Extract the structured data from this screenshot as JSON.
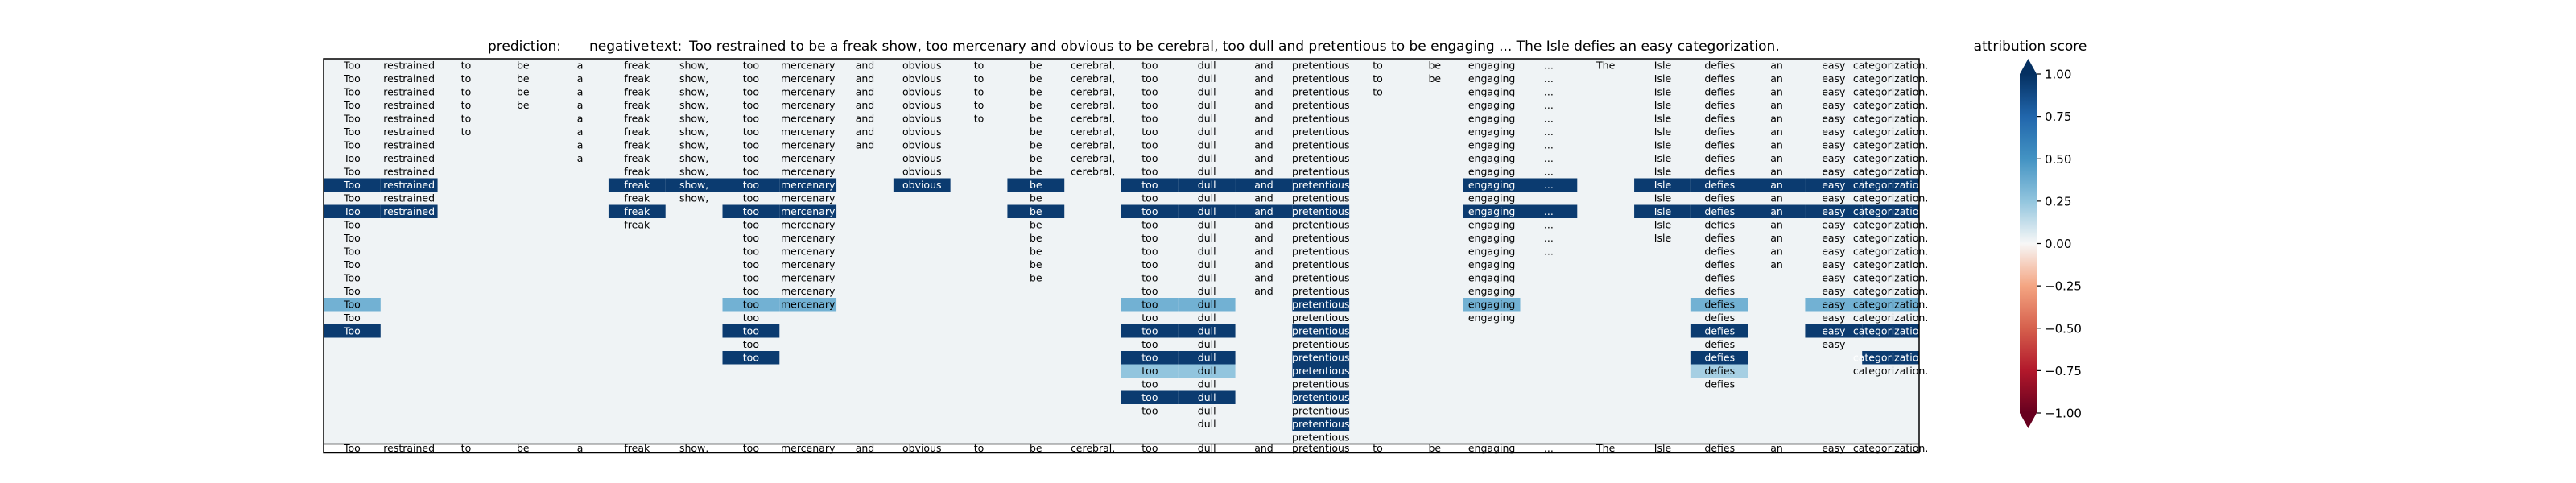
{
  "header": {
    "prediction_label": "prediction:",
    "prediction_value": "negative",
    "text_label": "text:",
    "text_value": "Too restrained to be a freak show, too mercenary and obvious to be cerebral, too dull and pretentious to be engaging ... The Isle defies an easy categorization."
  },
  "chart_data": {
    "type": "heatmap",
    "tokens": [
      "Too",
      "restrained",
      "to",
      "be",
      "a",
      "freak",
      "show,",
      "too",
      "mercenary",
      "and",
      "obvious",
      "to",
      "be",
      "cerebral,",
      "too",
      "dull",
      "and",
      "pretentious",
      "to",
      "be",
      "engaging",
      "...",
      "The",
      "Isle",
      "defies",
      "an",
      "easy",
      "categorization."
    ],
    "rows": [
      [
        0,
        1,
        2,
        3,
        4,
        5,
        6,
        7,
        8,
        9,
        10,
        11,
        12,
        13,
        14,
        15,
        16,
        17,
        18,
        19,
        20,
        21,
        22,
        23,
        24,
        25,
        26,
        27
      ],
      [
        0,
        1,
        2,
        3,
        4,
        5,
        6,
        7,
        8,
        9,
        10,
        11,
        12,
        13,
        14,
        15,
        16,
        17,
        18,
        19,
        20,
        21,
        23,
        24,
        25,
        26,
        27
      ],
      [
        0,
        1,
        2,
        3,
        4,
        5,
        6,
        7,
        8,
        9,
        10,
        11,
        12,
        13,
        14,
        15,
        16,
        17,
        18,
        20,
        21,
        23,
        24,
        25,
        26,
        27
      ],
      [
        0,
        1,
        2,
        3,
        4,
        5,
        6,
        7,
        8,
        9,
        10,
        11,
        12,
        13,
        14,
        15,
        16,
        17,
        20,
        21,
        23,
        24,
        25,
        26,
        27
      ],
      [
        0,
        1,
        2,
        4,
        5,
        6,
        7,
        8,
        9,
        10,
        11,
        12,
        13,
        14,
        15,
        16,
        17,
        20,
        21,
        23,
        24,
        25,
        26,
        27
      ],
      [
        0,
        1,
        2,
        4,
        5,
        6,
        7,
        8,
        9,
        10,
        12,
        13,
        14,
        15,
        16,
        17,
        20,
        21,
        23,
        24,
        25,
        26,
        27
      ],
      [
        0,
        1,
        4,
        5,
        6,
        7,
        8,
        9,
        10,
        12,
        13,
        14,
        15,
        16,
        17,
        20,
        21,
        23,
        24,
        25,
        26,
        27
      ],
      [
        0,
        1,
        4,
        5,
        6,
        7,
        8,
        10,
        12,
        13,
        14,
        15,
        16,
        17,
        20,
        21,
        23,
        24,
        25,
        26,
        27
      ],
      [
        0,
        1,
        5,
        6,
        7,
        8,
        10,
        12,
        13,
        14,
        15,
        16,
        17,
        20,
        21,
        23,
        24,
        25,
        26,
        27
      ],
      [
        0,
        1,
        5,
        6,
        7,
        8,
        10,
        12,
        14,
        15,
        16,
        17,
        20,
        21,
        23,
        24,
        25,
        26,
        27
      ],
      [
        0,
        1,
        5,
        6,
        7,
        8,
        12,
        14,
        15,
        16,
        17,
        20,
        23,
        24,
        25,
        26,
        27
      ],
      [
        0,
        1,
        5,
        7,
        8,
        12,
        14,
        15,
        16,
        17,
        20,
        21,
        23,
        24,
        25,
        26,
        27
      ],
      [
        0,
        5,
        7,
        8,
        12,
        14,
        15,
        16,
        17,
        20,
        21,
        23,
        24,
        25,
        26,
        27
      ],
      [
        0,
        7,
        8,
        12,
        14,
        15,
        16,
        17,
        20,
        21,
        23,
        24,
        25,
        26,
        27
      ],
      [
        0,
        7,
        8,
        12,
        14,
        15,
        16,
        17,
        20,
        21,
        24,
        25,
        26,
        27
      ],
      [
        0,
        7,
        8,
        12,
        14,
        15,
        16,
        17,
        20,
        24,
        25,
        26,
        27
      ],
      [
        0,
        7,
        8,
        12,
        14,
        15,
        16,
        17,
        20,
        24,
        26,
        27
      ],
      [
        0,
        7,
        8,
        14,
        15,
        16,
        17,
        20,
        24,
        26,
        27
      ],
      [
        0,
        7,
        8,
        14,
        15,
        17,
        20,
        24,
        26,
        27
      ],
      [
        0,
        7,
        14,
        15,
        17,
        20,
        24,
        26,
        27
      ],
      [
        0,
        7,
        14,
        15,
        17,
        24,
        26,
        27
      ],
      [
        7,
        14,
        15,
        17,
        24,
        26
      ],
      [
        7,
        14,
        15,
        17,
        24,
        27
      ],
      [
        14,
        15,
        17,
        24,
        27
      ],
      [
        14,
        15,
        17,
        24
      ],
      [
        14,
        15,
        17
      ],
      [
        14,
        15,
        17
      ],
      [
        15,
        17
      ],
      [
        17
      ]
    ],
    "highlights": [
      {
        "row": 9,
        "col": 0,
        "value": 0.95
      },
      {
        "row": 9,
        "col": 1,
        "value": 0.95
      },
      {
        "row": 9,
        "col": 5,
        "value": 0.95
      },
      {
        "row": 9,
        "col": 6,
        "value": 0.95
      },
      {
        "row": 9,
        "col": 7,
        "value": 0.95
      },
      {
        "row": 9,
        "col": 8,
        "value": 0.95
      },
      {
        "row": 9,
        "col": 10,
        "value": 0.95
      },
      {
        "row": 9,
        "col": 12,
        "value": 0.95
      },
      {
        "row": 9,
        "col": 14,
        "value": 0.95
      },
      {
        "row": 9,
        "col": 15,
        "value": 0.95
      },
      {
        "row": 9,
        "col": 16,
        "value": 0.95
      },
      {
        "row": 9,
        "col": 17,
        "value": 0.95
      },
      {
        "row": 9,
        "col": 20,
        "value": 0.95
      },
      {
        "row": 9,
        "col": 21,
        "value": 0.95
      },
      {
        "row": 9,
        "col": 23,
        "value": 0.95
      },
      {
        "row": 9,
        "col": 24,
        "value": 0.95
      },
      {
        "row": 9,
        "col": 25,
        "value": 0.95
      },
      {
        "row": 9,
        "col": 26,
        "value": 0.95
      },
      {
        "row": 9,
        "col": 27,
        "value": 0.95
      },
      {
        "row": 11,
        "col": 0,
        "value": 0.95
      },
      {
        "row": 11,
        "col": 1,
        "value": 0.95
      },
      {
        "row": 11,
        "col": 5,
        "value": 0.95
      },
      {
        "row": 11,
        "col": 7,
        "value": 0.95
      },
      {
        "row": 11,
        "col": 8,
        "value": 0.95
      },
      {
        "row": 11,
        "col": 12,
        "value": 0.95
      },
      {
        "row": 11,
        "col": 14,
        "value": 0.95
      },
      {
        "row": 11,
        "col": 15,
        "value": 0.95
      },
      {
        "row": 11,
        "col": 16,
        "value": 0.95
      },
      {
        "row": 11,
        "col": 17,
        "value": 0.95
      },
      {
        "row": 11,
        "col": 20,
        "value": 0.95
      },
      {
        "row": 11,
        "col": 21,
        "value": 0.95
      },
      {
        "row": 11,
        "col": 23,
        "value": 0.95
      },
      {
        "row": 11,
        "col": 24,
        "value": 0.95
      },
      {
        "row": 11,
        "col": 25,
        "value": 0.95
      },
      {
        "row": 11,
        "col": 26,
        "value": 0.95
      },
      {
        "row": 11,
        "col": 27,
        "value": 0.95
      },
      {
        "row": 18,
        "col": 0,
        "value": 0.35
      },
      {
        "row": 18,
        "col": 7,
        "value": 0.35
      },
      {
        "row": 18,
        "col": 8,
        "value": 0.35
      },
      {
        "row": 18,
        "col": 14,
        "value": 0.35
      },
      {
        "row": 18,
        "col": 15,
        "value": 0.35
      },
      {
        "row": 18,
        "col": 17,
        "value": 0.95
      },
      {
        "row": 18,
        "col": 20,
        "value": 0.35
      },
      {
        "row": 18,
        "col": 24,
        "value": 0.35
      },
      {
        "row": 18,
        "col": 26,
        "value": 0.35
      },
      {
        "row": 18,
        "col": 27,
        "value": 0.35
      },
      {
        "row": 20,
        "col": 0,
        "value": 0.95
      },
      {
        "row": 20,
        "col": 7,
        "value": 0.95
      },
      {
        "row": 20,
        "col": 14,
        "value": 0.95
      },
      {
        "row": 20,
        "col": 15,
        "value": 0.95
      },
      {
        "row": 20,
        "col": 17,
        "value": 0.95
      },
      {
        "row": 20,
        "col": 24,
        "value": 0.95
      },
      {
        "row": 20,
        "col": 26,
        "value": 0.95
      },
      {
        "row": 20,
        "col": 27,
        "value": 0.95
      },
      {
        "row": 22,
        "col": 7,
        "value": 0.95
      },
      {
        "row": 22,
        "col": 14,
        "value": 0.95
      },
      {
        "row": 22,
        "col": 15,
        "value": 0.95
      },
      {
        "row": 22,
        "col": 17,
        "value": 0.95
      },
      {
        "row": 22,
        "col": 24,
        "value": 0.95
      },
      {
        "row": 22,
        "col": 27,
        "value": 0.95
      },
      {
        "row": 23,
        "col": 14,
        "value": 0.25
      },
      {
        "row": 23,
        "col": 15,
        "value": 0.25
      },
      {
        "row": 23,
        "col": 17,
        "value": 0.95
      },
      {
        "row": 23,
        "col": 24,
        "value": 0.2
      },
      {
        "row": 25,
        "col": 14,
        "value": 0.95
      },
      {
        "row": 25,
        "col": 15,
        "value": 0.95
      },
      {
        "row": 25,
        "col": 17,
        "value": 0.95
      },
      {
        "row": 27,
        "col": 17,
        "value": 0.95
      },
      {
        "row": 2,
        "col": 22,
        "value": 0.08
      },
      {
        "row": 4,
        "col": 22,
        "value": 0.05
      },
      {
        "row": 6,
        "col": 2,
        "value": 0.05
      }
    ],
    "default_value": 0.02,
    "colorbar": {
      "label": "attribution score",
      "ticks": [
        "1.00",
        "0.75",
        "0.50",
        "0.25",
        "0.00",
        "−0.25",
        "−0.50",
        "−0.75",
        "−1.00"
      ],
      "range": [
        -1,
        1
      ],
      "colormap": "RdBu"
    }
  }
}
